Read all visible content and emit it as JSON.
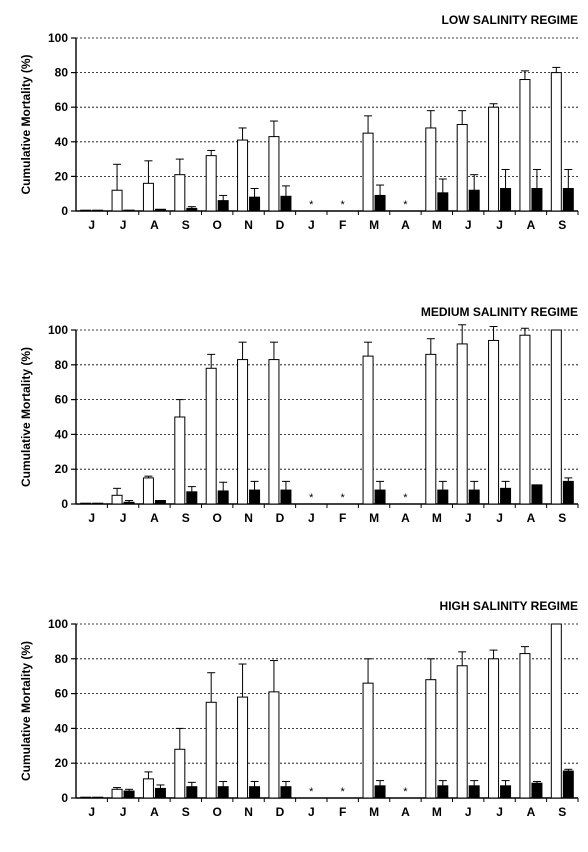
{
  "chart_data": [
    {
      "type": "bar",
      "title": "LOW SALINITY REGIME",
      "ylabel": "Cumulative Mortality (%)",
      "xlabel": "",
      "ylim": [
        0,
        100
      ],
      "yticks": [
        0,
        20,
        40,
        60,
        80,
        100
      ],
      "grid": "horizontal dashed",
      "categories": [
        "J",
        "J",
        "A",
        "S",
        "O",
        "N",
        "D",
        "J",
        "F",
        "M",
        "A",
        "M",
        "J",
        "J",
        "A",
        "S"
      ],
      "missing_marker": "*",
      "series": [
        {
          "fill": "#ffffff",
          "values": [
            0,
            12,
            16,
            21,
            32,
            41,
            43,
            null,
            null,
            45,
            null,
            48,
            50,
            60,
            76,
            80
          ],
          "errors": [
            0,
            15,
            13,
            9,
            3,
            7,
            9,
            null,
            null,
            10,
            null,
            10,
            8,
            2,
            5,
            3
          ]
        },
        {
          "fill": "#000000",
          "values": [
            0,
            0.5,
            1,
            1.5,
            6,
            8,
            8.5,
            null,
            null,
            9,
            null,
            10.5,
            12,
            13,
            13,
            13
          ],
          "errors": [
            0,
            0,
            0,
            1,
            3,
            5,
            6,
            null,
            null,
            6,
            null,
            8,
            9,
            11,
            11,
            11
          ]
        }
      ]
    },
    {
      "type": "bar",
      "title": "MEDIUM SALINITY REGIME",
      "ylabel": "Cumulative Mortality (%)",
      "xlabel": "",
      "ylim": [
        0,
        100
      ],
      "yticks": [
        0,
        20,
        40,
        60,
        80,
        100
      ],
      "grid": "horizontal dashed",
      "categories": [
        "J",
        "J",
        "A",
        "S",
        "O",
        "N",
        "D",
        "J",
        "F",
        "M",
        "A",
        "M",
        "J",
        "J",
        "A",
        "S"
      ],
      "missing_marker": "*",
      "series": [
        {
          "fill": "#ffffff",
          "values": [
            0,
            5,
            15,
            50,
            78,
            83,
            83,
            null,
            null,
            85,
            null,
            86,
            92,
            94,
            97,
            100
          ],
          "errors": [
            0,
            4,
            1,
            10,
            8,
            10,
            10,
            null,
            null,
            8,
            null,
            9,
            11,
            8,
            4,
            0
          ]
        },
        {
          "fill": "#000000",
          "values": [
            0,
            1,
            2,
            7,
            7.5,
            8,
            8,
            null,
            null,
            8,
            null,
            8,
            8,
            9,
            11,
            13
          ],
          "errors": [
            0,
            1,
            0,
            3,
            5,
            5,
            5,
            null,
            null,
            5,
            null,
            5,
            5,
            4,
            0,
            2
          ]
        }
      ]
    },
    {
      "type": "bar",
      "title": "HIGH SALINITY REGIME",
      "ylabel": "Cumulative Mortality (%)",
      "xlabel": "",
      "ylim": [
        0,
        100
      ],
      "yticks": [
        0,
        20,
        40,
        60,
        80,
        100
      ],
      "grid": "horizontal dashed",
      "categories": [
        "J",
        "J",
        "A",
        "S",
        "O",
        "N",
        "D",
        "J",
        "F",
        "M",
        "A",
        "M",
        "J",
        "J",
        "A",
        "S"
      ],
      "missing_marker": "*",
      "series": [
        {
          "fill": "#ffffff",
          "values": [
            0,
            5,
            11,
            28,
            55,
            58,
            61,
            null,
            null,
            66,
            null,
            68,
            76,
            80,
            83,
            100
          ],
          "errors": [
            0,
            1,
            4,
            12,
            17,
            19,
            18,
            null,
            null,
            14,
            null,
            12,
            8,
            5,
            4,
            0
          ]
        },
        {
          "fill": "#000000",
          "values": [
            0,
            4,
            5.5,
            6.5,
            6.5,
            6.5,
            6.5,
            null,
            null,
            7,
            null,
            7,
            7,
            7,
            8.5,
            15.5
          ],
          "errors": [
            0,
            1,
            2,
            2.5,
            3,
            3,
            3,
            null,
            null,
            3,
            null,
            3,
            3,
            3,
            1,
            1
          ]
        }
      ]
    }
  ]
}
